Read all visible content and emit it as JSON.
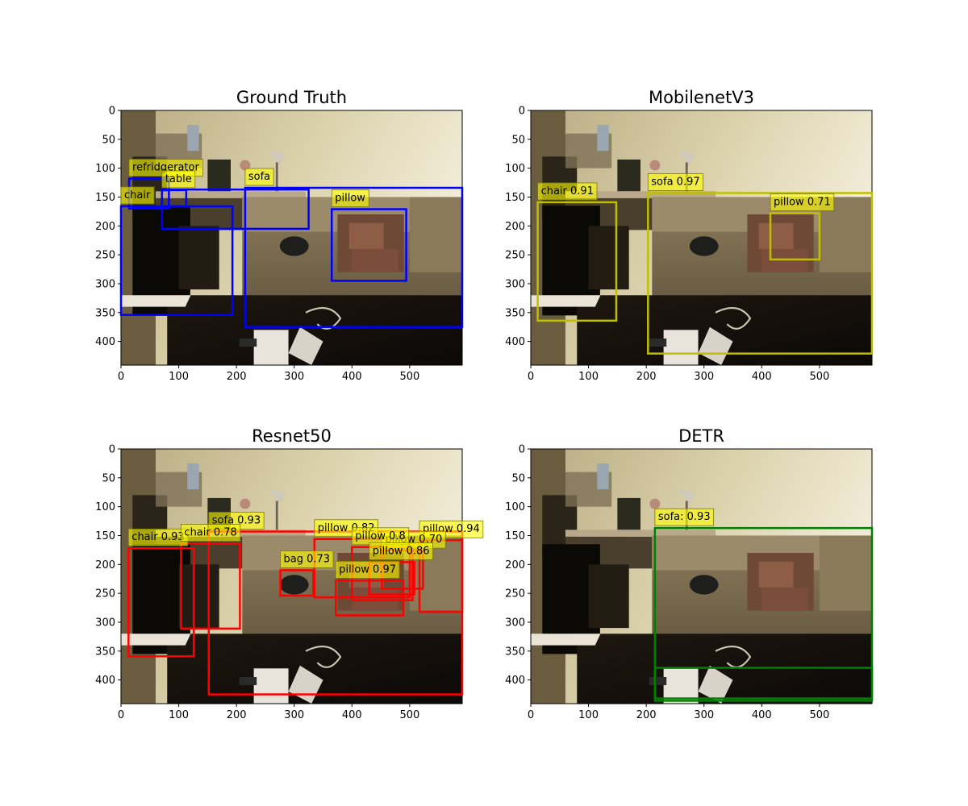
{
  "chart_data": [
    {
      "type": "image-detections",
      "title": "Ground Truth",
      "box_color": "#0000ff",
      "xticks": [
        0,
        100,
        200,
        300,
        400,
        500
      ],
      "yticks": [
        0,
        50,
        100,
        150,
        200,
        250,
        300,
        350,
        400
      ],
      "xlim": [
        0,
        591
      ],
      "ylim": [
        441,
        0
      ],
      "boxes": [
        {
          "label": "refridgerator",
          "x0": 14,
          "y0": 118,
          "x1": 83,
          "y1": 170
        },
        {
          "label": "table",
          "x0": 71,
          "y0": 138,
          "x1": 113,
          "y1": 166
        },
        {
          "label": "chair",
          "x0": 0,
          "y0": 166,
          "x1": 193,
          "y1": 354
        },
        {
          "label": "sofa",
          "x0": 215,
          "y0": 134,
          "x1": 591,
          "y1": 375
        },
        {
          "label": "pillow",
          "x0": 365,
          "y0": 171,
          "x1": 494,
          "y1": 295
        },
        {
          "label": "",
          "x0": 71,
          "y0": 137,
          "x1": 325,
          "y1": 205
        }
      ]
    },
    {
      "type": "image-detections",
      "title": "MobilenetV3",
      "box_color": "#bfbf00",
      "xticks": [
        0,
        100,
        200,
        300,
        400,
        500
      ],
      "yticks": [
        0,
        50,
        100,
        150,
        200,
        250,
        300,
        350,
        400
      ],
      "xlim": [
        0,
        591
      ],
      "ylim": [
        441,
        0
      ],
      "boxes": [
        {
          "label": "chair 0.91",
          "x0": 12,
          "y0": 159,
          "x1": 148,
          "y1": 364
        },
        {
          "label": "sofa 0.97",
          "x0": 203,
          "y0": 143,
          "x1": 591,
          "y1": 421
        },
        {
          "label": "pillow 0.71",
          "x0": 415,
          "y0": 178,
          "x1": 500,
          "y1": 258
        }
      ]
    },
    {
      "type": "image-detections",
      "title": "Resnet50",
      "box_color": "#ff0000",
      "xticks": [
        0,
        100,
        200,
        300,
        400,
        500
      ],
      "yticks": [
        0,
        50,
        100,
        150,
        200,
        250,
        300,
        350,
        400
      ],
      "xlim": [
        0,
        591
      ],
      "ylim": [
        441,
        0
      ],
      "boxes": [
        {
          "label": "sofa 0.93",
          "x0": 152,
          "y0": 143,
          "x1": 591,
          "y1": 425
        },
        {
          "label": "chair 0.93",
          "x0": 13,
          "y0": 172,
          "x1": 126,
          "y1": 359
        },
        {
          "label": "chair 0.78",
          "x0": 104,
          "y0": 164,
          "x1": 206,
          "y1": 311
        },
        {
          "label": "pillow 0.82",
          "x0": 335,
          "y0": 156,
          "x1": 500,
          "y1": 257
        },
        {
          "label": "pillow 0.94",
          "x0": 517,
          "y0": 158,
          "x1": 591,
          "y1": 282
        },
        {
          "label": "pillow 0.70",
          "x0": 452,
          "y0": 176,
          "x1": 523,
          "y1": 242
        },
        {
          "label": "pillow 0.8",
          "x0": 400,
          "y0": 170,
          "x1": 505,
          "y1": 262
        },
        {
          "label": "pillow 0.86",
          "x0": 430,
          "y0": 196,
          "x1": 508,
          "y1": 252
        },
        {
          "label": "bag 0.73",
          "x0": 276,
          "y0": 210,
          "x1": 333,
          "y1": 254
        },
        {
          "label": "pillow 0.97",
          "x0": 372,
          "y0": 228,
          "x1": 489,
          "y1": 288
        }
      ]
    },
    {
      "type": "image-detections",
      "title": "DETR",
      "box_color": "#008000",
      "xticks": [
        0,
        100,
        200,
        300,
        400,
        500
      ],
      "yticks": [
        0,
        50,
        100,
        150,
        200,
        250,
        300,
        350,
        400
      ],
      "xlim": [
        0,
        591
      ],
      "ylim": [
        441,
        0
      ],
      "boxes": [
        {
          "label": "sofa: 0.93",
          "x0": 215,
          "y0": 137,
          "x1": 591,
          "y1": 432
        },
        {
          "label": "",
          "x0": 215,
          "y0": 379,
          "x1": 591,
          "y1": 436
        }
      ]
    }
  ]
}
